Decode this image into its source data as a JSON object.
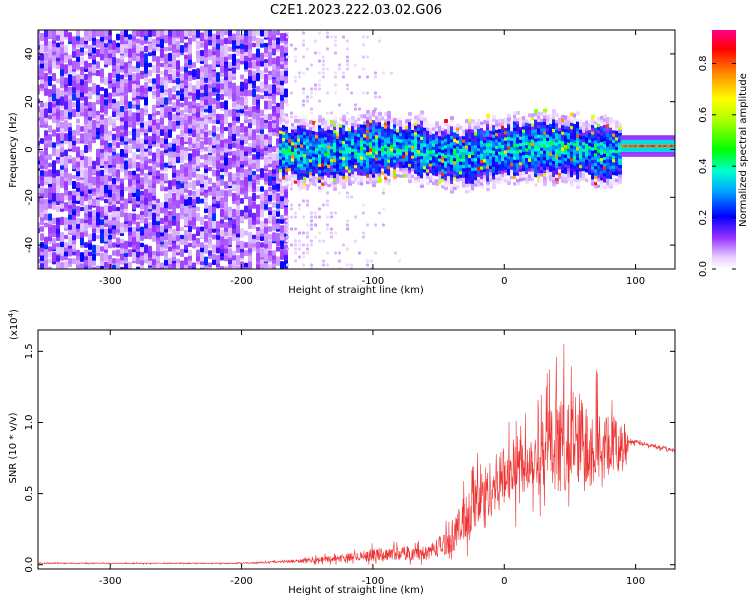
{
  "title": "C2E1.2023.222.03.02.G06",
  "colors": {
    "snr_line": "#ee3333",
    "axis": "#000000",
    "background": "#ffffff"
  },
  "chart_data": [
    {
      "type": "heatmap",
      "xlabel": "Height of straight line (km)",
      "ylabel": "Frequency (Hz)",
      "xlim": [
        -355,
        130
      ],
      "ylim": [
        -50,
        50
      ],
      "xticks": [
        -300,
        -200,
        -100,
        0,
        100
      ],
      "yticks": [
        -40,
        -20,
        0,
        20,
        40
      ],
      "xtick_labels": [
        "-300",
        "-200",
        "-100",
        "0",
        "100"
      ],
      "ytick_labels": [
        "-40",
        "-20",
        "0",
        "20",
        "40"
      ],
      "colorbar": {
        "label": "Normalized spectral amplitude",
        "range": [
          0,
          0.93
        ],
        "ticks": [
          0.0,
          0.2,
          0.4,
          0.6,
          0.8
        ],
        "tick_labels": [
          "0.0",
          "0.2",
          "0.4",
          "0.6",
          "0.8"
        ]
      },
      "features": [
        {
          "name": "broadband noise",
          "x_range": [
            -355,
            -165
          ],
          "freq_range": [
            -50,
            50
          ],
          "amplitude": 0.15
        },
        {
          "name": "sparse noise",
          "x_range": [
            -165,
            -75
          ],
          "freq_range": [
            -50,
            50
          ],
          "amplitude": 0.08
        },
        {
          "name": "Doppler signal band",
          "x_range": [
            -170,
            90
          ],
          "center_freq": 0,
          "half_width_hz": 6,
          "amplitude": 0.35
        },
        {
          "name": "steady tone",
          "x_range": [
            90,
            130
          ],
          "center_freq": 1.5,
          "amplitude": 0.75
        }
      ]
    },
    {
      "type": "line",
      "xlabel": "Height of straight line (km)",
      "ylabel": "SNR (10 * v/v)",
      "multiplier_label": "(x10",
      "multiplier_exp": "4",
      "multiplier_close": ")",
      "xlim": [
        -355,
        130
      ],
      "ylim": [
        -0.03,
        1.65
      ],
      "xticks": [
        -300,
        -200,
        -100,
        0,
        100
      ],
      "yticks": [
        0.0,
        0.5,
        1.0,
        1.5
      ],
      "xtick_labels": [
        "-300",
        "-200",
        "-100",
        "0",
        "100"
      ],
      "ytick_labels": [
        "0.0",
        "0.5",
        "1.0",
        "1.5"
      ],
      "series": [
        {
          "name": "SNR",
          "x": [
            -355,
            -300,
            -250,
            -200,
            -170,
            -150,
            -120,
            -100,
            -80,
            -60,
            -45,
            -35,
            -25,
            -15,
            -5,
            5,
            15,
            25,
            35,
            45,
            55,
            65,
            75,
            85,
            92,
            95,
            110,
            130
          ],
          "y": [
            0.01,
            0.01,
            0.01,
            0.01,
            0.02,
            0.03,
            0.05,
            0.07,
            0.08,
            0.08,
            0.15,
            0.25,
            0.4,
            0.5,
            0.58,
            0.66,
            0.72,
            0.78,
            0.82,
            0.85,
            0.86,
            0.85,
            0.84,
            0.83,
            0.82,
            0.87,
            0.84,
            0.8
          ],
          "spread": [
            0.005,
            0.005,
            0.005,
            0.006,
            0.01,
            0.02,
            0.04,
            0.06,
            0.07,
            0.07,
            0.12,
            0.2,
            0.28,
            0.28,
            0.3,
            0.3,
            0.3,
            0.32,
            0.4,
            0.5,
            0.55,
            0.45,
            0.3,
            0.28,
            0.25,
            0.02,
            0.02,
            0.02
          ]
        }
      ]
    }
  ]
}
